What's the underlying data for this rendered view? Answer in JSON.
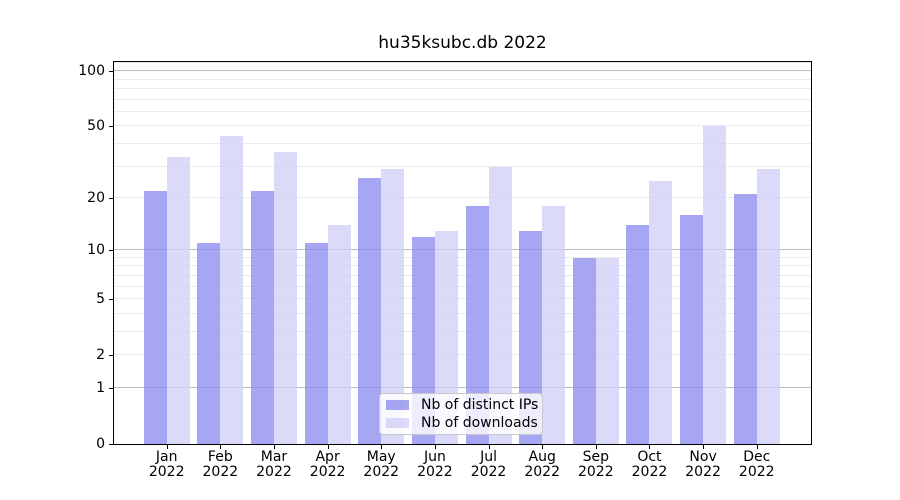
{
  "chart_data": {
    "type": "bar",
    "title": "hu35ksubc.db 2022",
    "months": [
      "Jan",
      "Feb",
      "Mar",
      "Apr",
      "May",
      "Jun",
      "Jul",
      "Aug",
      "Sep",
      "Oct",
      "Nov",
      "Dec"
    ],
    "year": "2022",
    "categories": [
      "Jan 2022",
      "Feb 2022",
      "Mar 2022",
      "Apr 2022",
      "May 2022",
      "Jun 2022",
      "Jul 2022",
      "Aug 2022",
      "Sep 2022",
      "Oct 2022",
      "Nov 2022",
      "Dec 2022"
    ],
    "series": [
      {
        "name": "Nb of distinct IPs",
        "color": "rgba(138,136,238,0.75)",
        "values": [
          22,
          11,
          22,
          11,
          26,
          12,
          18,
          13,
          9,
          14,
          16,
          21
        ]
      },
      {
        "name": "Nb of downloads",
        "color": "rgba(207,206,247,0.75)",
        "values": [
          34,
          44,
          36,
          14,
          29,
          13,
          30,
          18,
          9,
          25,
          50,
          29
        ]
      }
    ],
    "xlabel": "",
    "ylabel": "",
    "yscale": "log10(value+1)",
    "ylim": [
      0,
      112
    ],
    "y_tick_values": [
      100,
      50,
      20,
      10,
      5,
      2,
      1,
      0
    ],
    "y_tick_labels": [
      "100",
      "50",
      "20",
      "10",
      "5",
      "2",
      "1",
      "0"
    ],
    "gridlines_major": [
      1,
      10,
      100
    ],
    "gridlines_minor": [
      2,
      3,
      4,
      5,
      6,
      7,
      8,
      9,
      20,
      30,
      40,
      50,
      60,
      70,
      80,
      90,
      110
    ],
    "grid": true,
    "legend_position": "lower center"
  },
  "colors": {
    "major_grid": "#bdbdbd",
    "minor_grid": "#ebebeb",
    "spine": "#000000",
    "background": "#ffffff",
    "bar_distinct_ips": "#a9a7f3",
    "bar_downloads": "#dbdaf8"
  }
}
